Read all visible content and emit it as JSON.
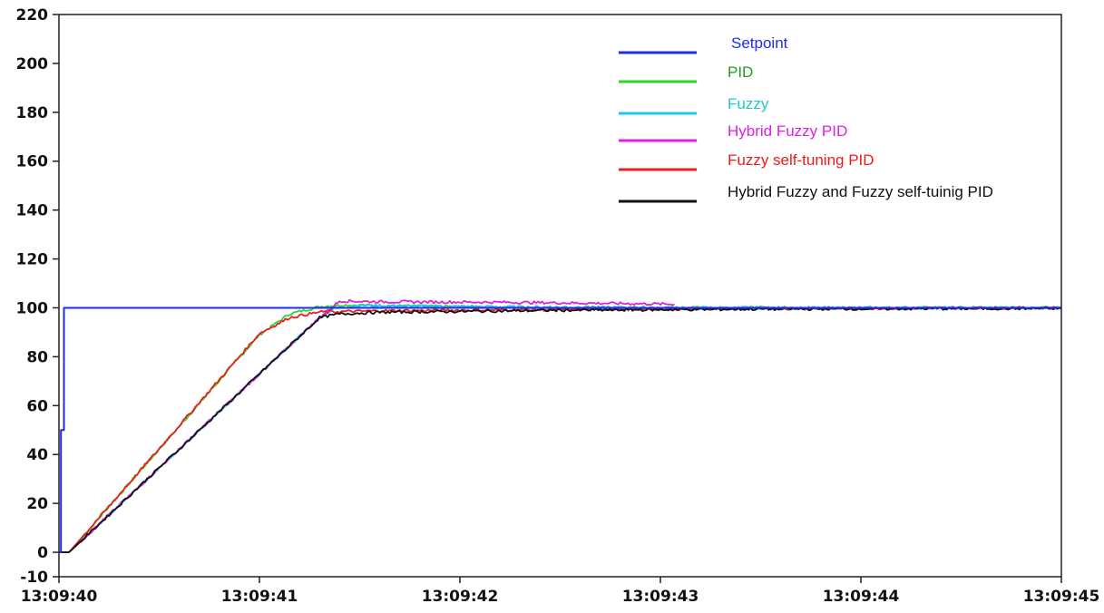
{
  "chart_data": {
    "type": "line",
    "title": "",
    "xlabel": "",
    "ylabel": "",
    "xlim": [
      0,
      5
    ],
    "ylim": [
      -10,
      220
    ],
    "grid": false,
    "legend_position": "top-right",
    "x_ticks": [
      {
        "value": 0,
        "label": "13:09:40"
      },
      {
        "value": 1,
        "label": "13:09:41"
      },
      {
        "value": 2,
        "label": "13:09:42"
      },
      {
        "value": 3,
        "label": "13:09:43"
      },
      {
        "value": 4,
        "label": "13:09:44"
      },
      {
        "value": 5,
        "label": "13:09:45"
      }
    ],
    "y_ticks": [
      -10,
      0,
      20,
      40,
      60,
      80,
      100,
      120,
      140,
      160,
      180,
      200,
      220
    ],
    "series": [
      {
        "name": "Setpoint",
        "color": "#1f2ee6",
        "text_color": "#1f2ee6",
        "points": [
          [
            0,
            0
          ],
          [
            0.01,
            0
          ],
          [
            0.01,
            50
          ],
          [
            0.025,
            50
          ],
          [
            0.025,
            100
          ],
          [
            5,
            100
          ]
        ]
      },
      {
        "name": "PID",
        "color": "#2ed62e",
        "text_color": "#1f9e1f",
        "points": [
          [
            0,
            0
          ],
          [
            0.05,
            0
          ],
          [
            1.0,
            89
          ],
          [
            1.15,
            97.5
          ],
          [
            1.3,
            100.5
          ],
          [
            1.42,
            101.2
          ],
          [
            1.7,
            100.8
          ],
          [
            2.2,
            100.3
          ],
          [
            3,
            100
          ],
          [
            5,
            100
          ]
        ]
      },
      {
        "name": "Fuzzy",
        "color": "#22c7f0",
        "text_color": "#1fc8c8",
        "points": [
          [
            0,
            0
          ],
          [
            0.05,
            0
          ],
          [
            1.3,
            96
          ],
          [
            1.38,
            100
          ],
          [
            1.5,
            101
          ],
          [
            2.0,
            100.5
          ],
          [
            3,
            100
          ],
          [
            5,
            100
          ]
        ]
      },
      {
        "name": "Hybrid Fuzzy PID",
        "color": "#e020e0",
        "text_color": "#e020e0",
        "points": [
          [
            0,
            0
          ],
          [
            0.05,
            0
          ],
          [
            1.3,
            96
          ],
          [
            1.4,
            102.8
          ],
          [
            1.6,
            102.5
          ],
          [
            2.2,
            102.3
          ],
          [
            2.8,
            101.8
          ],
          [
            3.07,
            101.5
          ]
        ]
      },
      {
        "name": "Fuzzy self-tuning PID",
        "color": "#ee1c1c",
        "text_color": "#ee1c1c",
        "points": [
          [
            0,
            0
          ],
          [
            0.05,
            0
          ],
          [
            1.0,
            89.5
          ],
          [
            1.15,
            96
          ],
          [
            1.3,
            98.3
          ],
          [
            1.6,
            98.8
          ],
          [
            2.5,
            99.3
          ],
          [
            3.5,
            99.7
          ],
          [
            5,
            100
          ]
        ]
      },
      {
        "name": "Hybrid Fuzzy and Fuzzy self-tuinig PID",
        "color": "#111111",
        "text_color": "#111111",
        "points": [
          [
            0,
            0
          ],
          [
            0.05,
            0
          ],
          [
            1.3,
            96
          ],
          [
            1.4,
            97.5
          ],
          [
            1.6,
            98.2
          ],
          [
            2.5,
            99
          ],
          [
            3.5,
            99.5
          ],
          [
            5,
            99.8
          ]
        ]
      }
    ]
  }
}
